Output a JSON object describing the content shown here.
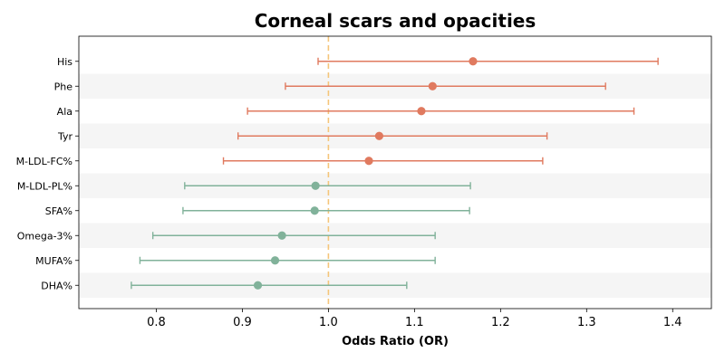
{
  "chart_data": {
    "type": "forest",
    "title": "Corneal scars and opacities",
    "xlabel": "Odds Ratio (OR)",
    "ylabel": "",
    "xlim": [
      0.71,
      1.445
    ],
    "xticks": [
      0.8,
      0.9,
      1.0,
      1.1,
      1.2,
      1.3,
      1.4
    ],
    "xtick_labels": [
      "0.8",
      "0.9",
      "1.0",
      "1.1",
      "1.2",
      "1.3",
      "1.4"
    ],
    "reference_line": 1.0,
    "reference_color": "#f5c57a",
    "alternating_row_shading": true,
    "grid": false,
    "colors": {
      "positive": "#e07a5f",
      "negative": "#81b29a",
      "shading": "#f5f5f5"
    },
    "rows": [
      {
        "label": "His",
        "or": 1.168,
        "lower": 0.988,
        "upper": 1.383,
        "color": "#e07a5f"
      },
      {
        "label": "Phe",
        "or": 1.121,
        "lower": 0.95,
        "upper": 1.322,
        "color": "#e07a5f"
      },
      {
        "label": "Ala",
        "or": 1.108,
        "lower": 0.906,
        "upper": 1.355,
        "color": "#e07a5f"
      },
      {
        "label": "Tyr",
        "or": 1.059,
        "lower": 0.895,
        "upper": 1.254,
        "color": "#e07a5f"
      },
      {
        "label": "M-LDL-FC%",
        "or": 1.047,
        "lower": 0.878,
        "upper": 1.249,
        "color": "#e07a5f"
      },
      {
        "label": "M-LDL-PL%",
        "or": 0.985,
        "lower": 0.833,
        "upper": 1.165,
        "color": "#81b29a"
      },
      {
        "label": "SFA%",
        "or": 0.984,
        "lower": 0.831,
        "upper": 1.164,
        "color": "#81b29a"
      },
      {
        "label": "Omega-3%",
        "or": 0.946,
        "lower": 0.796,
        "upper": 1.124,
        "color": "#81b29a"
      },
      {
        "label": "MUFA%",
        "or": 0.938,
        "lower": 0.781,
        "upper": 1.124,
        "color": "#81b29a"
      },
      {
        "label": "DHA%",
        "or": 0.918,
        "lower": 0.771,
        "upper": 1.091,
        "color": "#81b29a"
      }
    ]
  }
}
